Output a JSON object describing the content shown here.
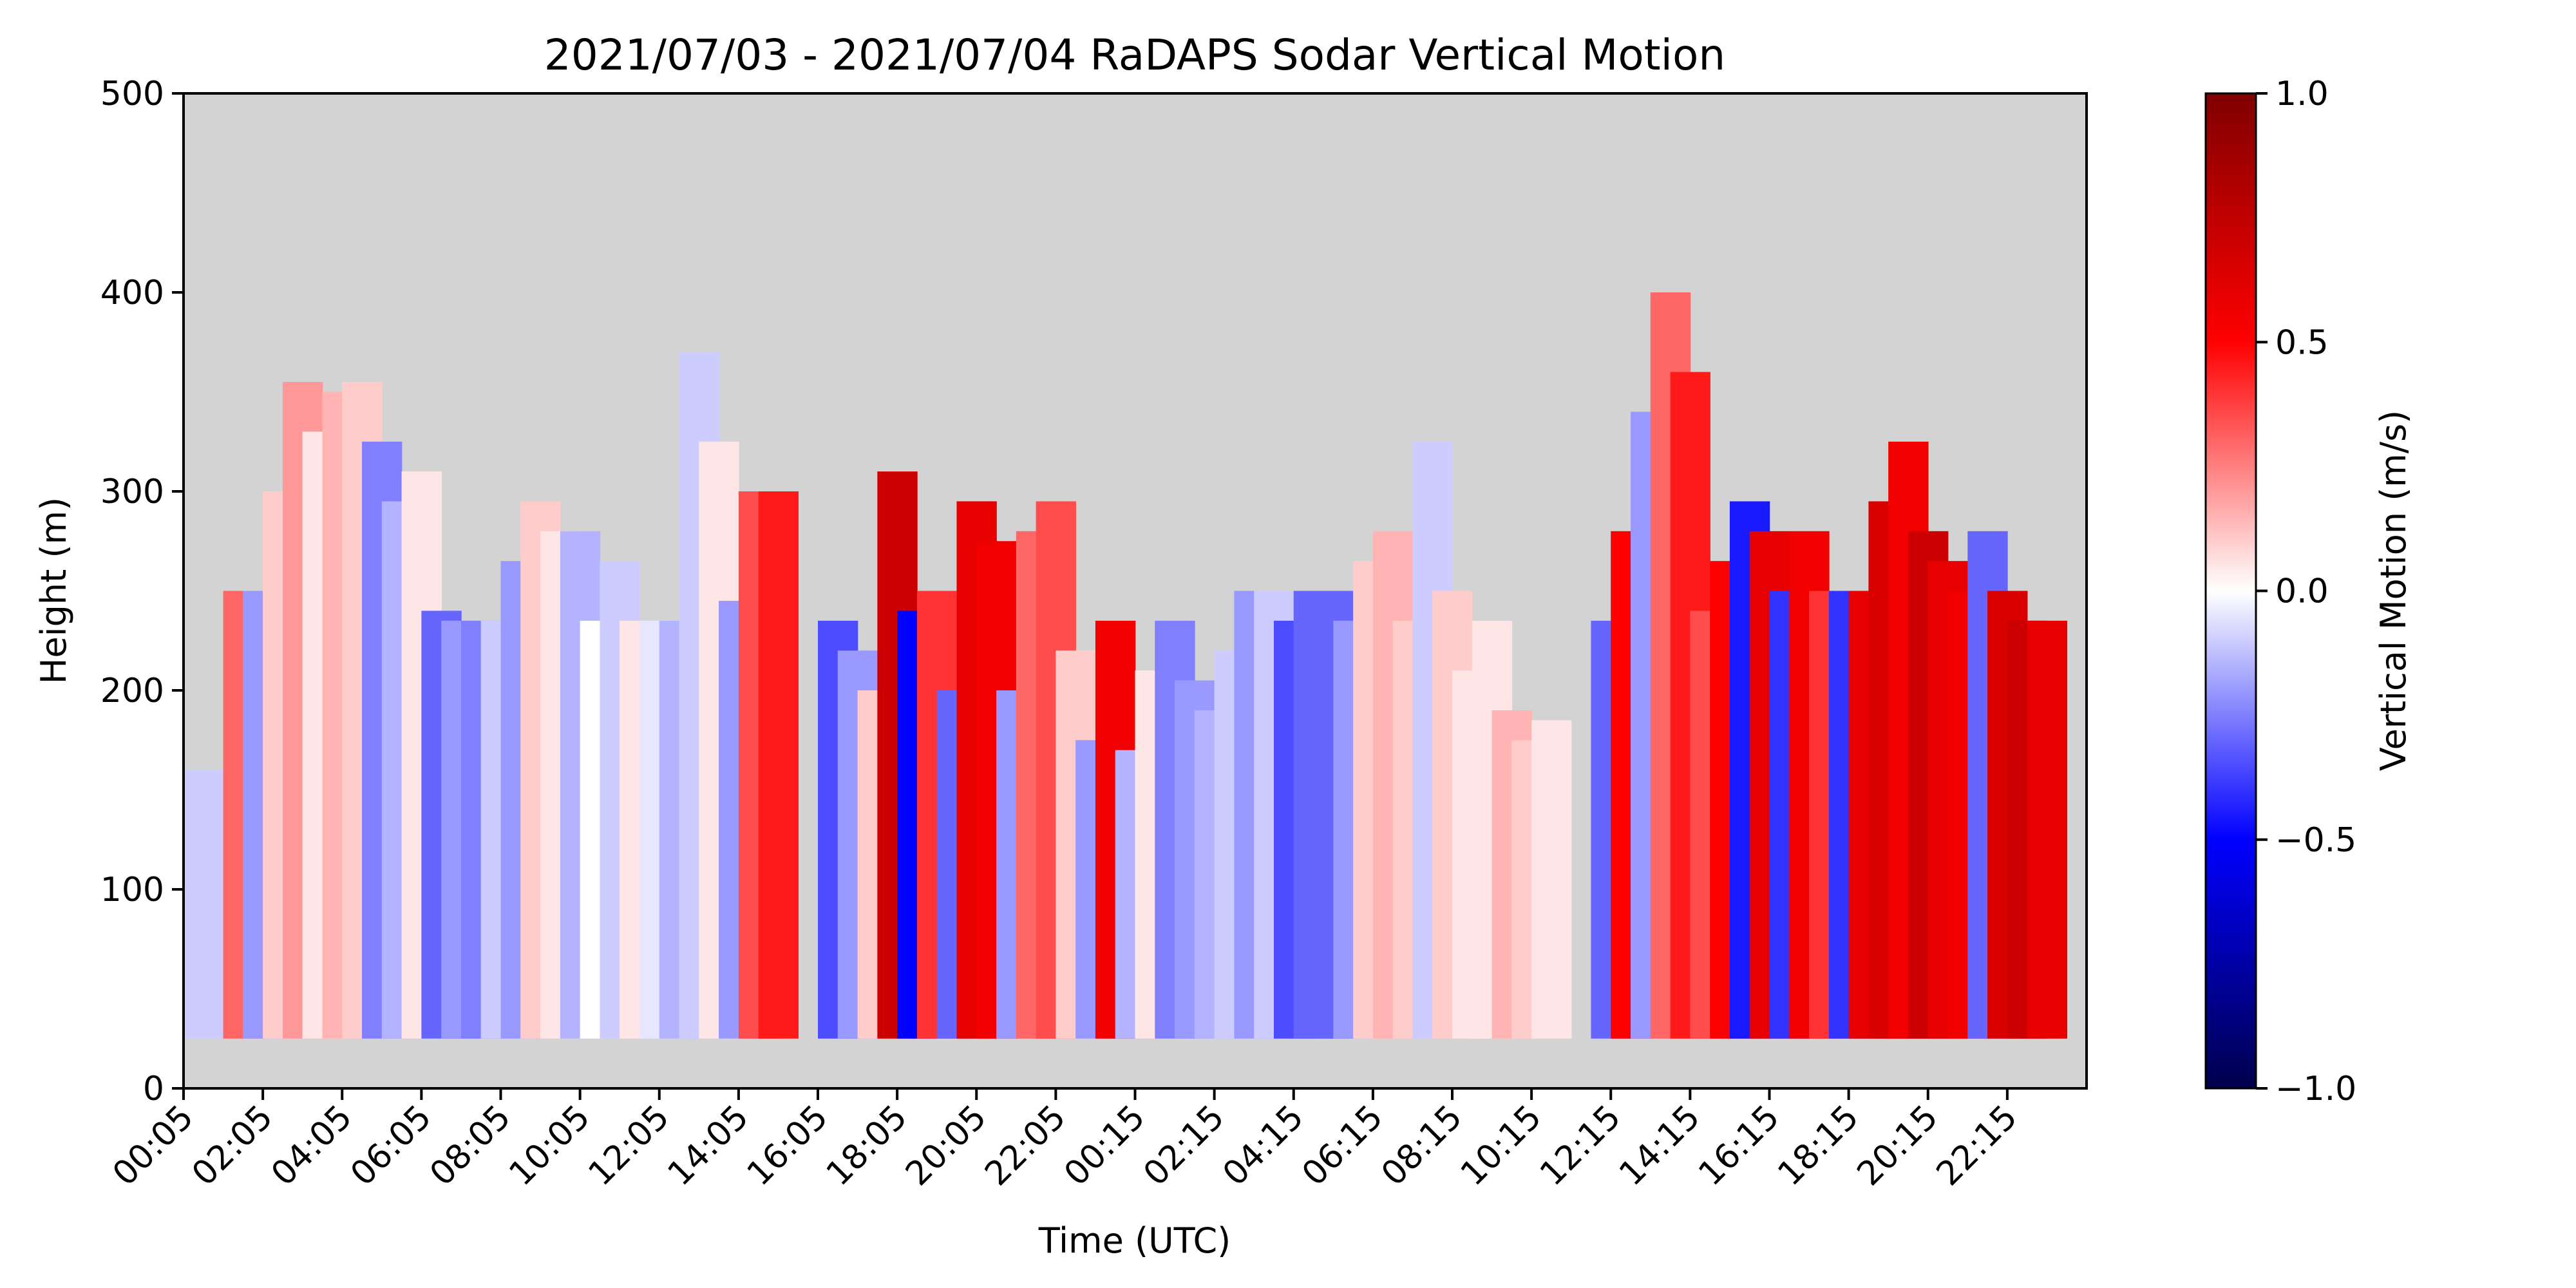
{
  "chart_data": {
    "type": "heatmap",
    "title": "2021/07/03 - 2021/07/04 RaDAPS Sodar Vertical Motion",
    "xlabel": "Time (UTC)",
    "ylabel": "Height (m)",
    "ylim": [
      0,
      500
    ],
    "yticks": [
      0,
      100,
      200,
      300,
      400,
      500
    ],
    "xticks": [
      "00:05",
      "02:05",
      "04:05",
      "06:05",
      "08:05",
      "10:05",
      "12:05",
      "14:05",
      "16:05",
      "18:05",
      "20:05",
      "22:05",
      "00:15",
      "02:15",
      "04:15",
      "06:15",
      "08:15",
      "10:15",
      "12:15",
      "14:15",
      "16:15",
      "18:15",
      "20:15",
      "22:15"
    ],
    "background_color": "#d3d3d3",
    "min_height_m": 25,
    "colorbar": {
      "label": "Vertical Motion (m/s)",
      "range": [
        -1.0,
        1.0
      ],
      "ticks": [
        "1.0",
        "0.5",
        "0.0",
        "−0.5",
        "−1.0"
      ],
      "colormap": "seismic"
    },
    "columns": [
      {
        "t": 0.0,
        "top": 160,
        "w": -0.1
      },
      {
        "t": 0.5,
        "top": 0,
        "w": 0
      },
      {
        "t": 1.0,
        "top": 250,
        "w": 0.3
      },
      {
        "t": 1.5,
        "top": 250,
        "w": -0.2
      },
      {
        "t": 2.0,
        "top": 300,
        "w": 0.1
      },
      {
        "t": 2.5,
        "top": 355,
        "w": 0.2
      },
      {
        "t": 3.0,
        "top": 330,
        "w": 0.05
      },
      {
        "t": 3.5,
        "top": 350,
        "w": 0.15
      },
      {
        "t": 4.0,
        "top": 355,
        "w": 0.1
      },
      {
        "t": 4.5,
        "top": 325,
        "w": -0.25
      },
      {
        "t": 5.0,
        "top": 295,
        "w": -0.15
      },
      {
        "t": 5.5,
        "top": 310,
        "w": 0.05
      },
      {
        "t": 6.0,
        "top": 240,
        "w": -0.3
      },
      {
        "t": 6.5,
        "top": 235,
        "w": -0.2
      },
      {
        "t": 7.0,
        "top": 235,
        "w": -0.25
      },
      {
        "t": 7.5,
        "top": 235,
        "w": -0.1
      },
      {
        "t": 8.0,
        "top": 265,
        "w": -0.2
      },
      {
        "t": 8.5,
        "top": 295,
        "w": 0.1
      },
      {
        "t": 9.0,
        "top": 280,
        "w": 0.05
      },
      {
        "t": 9.5,
        "top": 280,
        "w": -0.15
      },
      {
        "t": 10.0,
        "top": 235,
        "w": 0.0
      },
      {
        "t": 10.5,
        "top": 265,
        "w": -0.1
      },
      {
        "t": 11.0,
        "top": 235,
        "w": 0.05
      },
      {
        "t": 11.5,
        "top": 235,
        "w": -0.05
      },
      {
        "t": 12.0,
        "top": 235,
        "w": -0.15
      },
      {
        "t": 12.5,
        "top": 370,
        "w": -0.1
      },
      {
        "t": 13.0,
        "top": 325,
        "w": 0.05
      },
      {
        "t": 13.5,
        "top": 245,
        "w": -0.2
      },
      {
        "t": 14.0,
        "top": 300,
        "w": 0.35
      },
      {
        "t": 14.5,
        "top": 300,
        "w": 0.45
      },
      {
        "t": 15.0,
        "top": 0,
        "w": 0
      },
      {
        "t": 15.5,
        "top": 0,
        "w": 0
      },
      {
        "t": 16.0,
        "top": 235,
        "w": -0.35
      },
      {
        "t": 16.5,
        "top": 220,
        "w": -0.2
      },
      {
        "t": 17.0,
        "top": 200,
        "w": 0.1
      },
      {
        "t": 17.5,
        "top": 310,
        "w": 0.7
      },
      {
        "t": 18.0,
        "top": 240,
        "w": -0.5
      },
      {
        "t": 18.5,
        "top": 250,
        "w": 0.4
      },
      {
        "t": 19.0,
        "top": 200,
        "w": -0.3
      },
      {
        "t": 19.5,
        "top": 295,
        "w": 0.6
      },
      {
        "t": 20.0,
        "top": 275,
        "w": 0.55
      },
      {
        "t": 20.5,
        "top": 200,
        "w": -0.2
      },
      {
        "t": 21.0,
        "top": 280,
        "w": 0.3
      },
      {
        "t": 21.5,
        "top": 295,
        "w": 0.35
      },
      {
        "t": 22.0,
        "top": 220,
        "w": 0.1
      },
      {
        "t": 22.5,
        "top": 175,
        "w": -0.2
      },
      {
        "t": 23.0,
        "top": 235,
        "w": 0.55
      },
      {
        "t": 23.5,
        "top": 170,
        "w": -0.15
      },
      {
        "t": 24.0,
        "top": 210,
        "w": 0.05
      },
      {
        "t": 24.5,
        "top": 235,
        "w": -0.25
      },
      {
        "t": 25.0,
        "top": 205,
        "w": -0.2
      },
      {
        "t": 25.5,
        "top": 190,
        "w": -0.15
      },
      {
        "t": 26.0,
        "top": 220,
        "w": -0.1
      },
      {
        "t": 26.5,
        "top": 250,
        "w": -0.2
      },
      {
        "t": 27.0,
        "top": 250,
        "w": -0.1
      },
      {
        "t": 27.5,
        "top": 235,
        "w": -0.35
      },
      {
        "t": 28.0,
        "top": 250,
        "w": -0.3
      },
      {
        "t": 28.5,
        "top": 250,
        "w": -0.3
      },
      {
        "t": 29.0,
        "top": 235,
        "w": -0.2
      },
      {
        "t": 29.5,
        "top": 265,
        "w": 0.1
      },
      {
        "t": 30.0,
        "top": 280,
        "w": 0.15
      },
      {
        "t": 30.5,
        "top": 235,
        "w": 0.1
      },
      {
        "t": 31.0,
        "top": 325,
        "w": -0.1
      },
      {
        "t": 31.5,
        "top": 250,
        "w": 0.1
      },
      {
        "t": 32.0,
        "top": 210,
        "w": 0.05
      },
      {
        "t": 32.5,
        "top": 235,
        "w": 0.05
      },
      {
        "t": 33.0,
        "top": 190,
        "w": 0.15
      },
      {
        "t": 33.5,
        "top": 175,
        "w": 0.1
      },
      {
        "t": 34.0,
        "top": 185,
        "w": 0.05
      },
      {
        "t": 34.5,
        "top": 0,
        "w": 0
      },
      {
        "t": 35.0,
        "top": 0,
        "w": 0
      },
      {
        "t": 35.5,
        "top": 235,
        "w": -0.3
      },
      {
        "t": 36.0,
        "top": 280,
        "w": 0.5
      },
      {
        "t": 36.5,
        "top": 340,
        "w": -0.2
      },
      {
        "t": 37.0,
        "top": 400,
        "w": 0.3
      },
      {
        "t": 37.5,
        "top": 360,
        "w": 0.45
      },
      {
        "t": 38.0,
        "top": 240,
        "w": 0.35
      },
      {
        "t": 38.5,
        "top": 265,
        "w": 0.5
      },
      {
        "t": 39.0,
        "top": 295,
        "w": -0.45
      },
      {
        "t": 39.5,
        "top": 280,
        "w": 0.6
      },
      {
        "t": 40.0,
        "top": 250,
        "w": -0.4
      },
      {
        "t": 40.5,
        "top": 280,
        "w": 0.55
      },
      {
        "t": 41.0,
        "top": 250,
        "w": 0.4
      },
      {
        "t": 41.5,
        "top": 250,
        "w": -0.4
      },
      {
        "t": 42.0,
        "top": 250,
        "w": 0.6
      },
      {
        "t": 42.5,
        "top": 295,
        "w": 0.65
      },
      {
        "t": 43.0,
        "top": 325,
        "w": 0.55
      },
      {
        "t": 43.5,
        "top": 280,
        "w": 0.7
      },
      {
        "t": 44.0,
        "top": 265,
        "w": 0.6
      },
      {
        "t": 44.5,
        "top": 250,
        "w": 0.55
      },
      {
        "t": 45.0,
        "top": 280,
        "w": -0.3
      },
      {
        "t": 45.5,
        "top": 250,
        "w": 0.65
      },
      {
        "t": 46.0,
        "top": 235,
        "w": 0.7
      },
      {
        "t": 46.5,
        "top": 235,
        "w": 0.6
      }
    ]
  }
}
